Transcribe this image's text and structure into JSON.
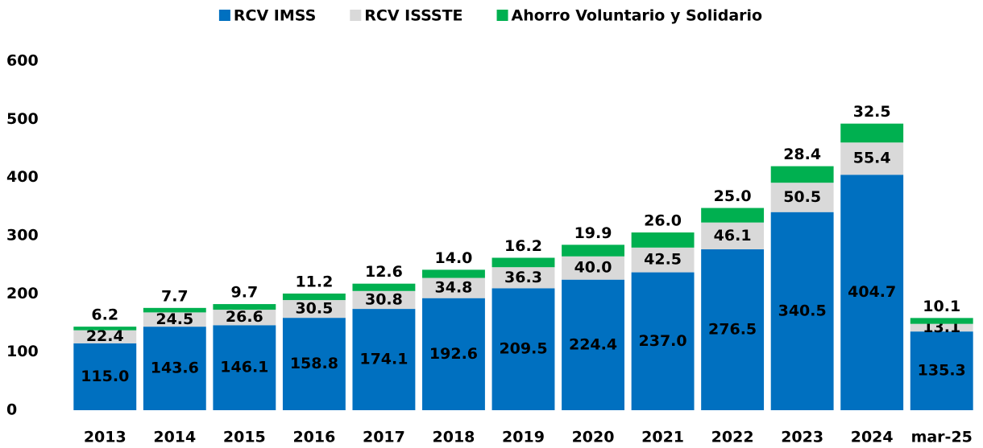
{
  "chart_data": {
    "type": "stacked_bar",
    "categories": [
      "2013",
      "2014",
      "2015",
      "2016",
      "2017",
      "2018",
      "2019",
      "2020",
      "2021",
      "2022",
      "2023",
      "2024",
      "mar-25"
    ],
    "series": [
      {
        "name": "RCV IMSS",
        "color": "#0070c0",
        "values": [
          115.0,
          143.6,
          146.1,
          158.8,
          174.1,
          192.6,
          209.5,
          224.4,
          237.0,
          276.5,
          340.5,
          404.7,
          135.3
        ],
        "value_labels": [
          "115.0",
          "143.6",
          "146.1",
          "158.8",
          "174.1",
          "192.6",
          "209.5",
          "224.4",
          "237.0",
          "276.5",
          "340.5",
          "404.7",
          "135.3"
        ]
      },
      {
        "name": "RCV ISSSTE",
        "color": "#d9d9d9",
        "values": [
          22.4,
          24.5,
          26.6,
          30.5,
          30.8,
          34.8,
          36.3,
          40.0,
          42.5,
          46.1,
          50.5,
          55.4,
          13.1
        ],
        "value_labels": [
          "22.4",
          "24.5",
          "26.6",
          "30.5",
          "30.8",
          "34.8",
          "36.3",
          "40.0",
          "42.5",
          "46.1",
          "50.5",
          "55.4",
          "13.1"
        ]
      },
      {
        "name": "Ahorro Voluntario y Solidario",
        "color": "#00b050",
        "values": [
          6.2,
          7.7,
          9.7,
          11.2,
          12.6,
          14.0,
          16.2,
          19.9,
          26.0,
          25.0,
          28.4,
          32.5,
          10.1
        ],
        "value_labels": [
          "6.2",
          "7.7",
          "9.7",
          "11.2",
          "12.6",
          "14.0",
          "16.2",
          "19.9",
          "26.0",
          "25.0",
          "28.4",
          "32.5",
          "10.1"
        ]
      }
    ],
    "ylim": [
      0,
      600
    ],
    "yticks": [
      0,
      100,
      200,
      300,
      400,
      500,
      600
    ],
    "grid": false,
    "legend": "top"
  }
}
